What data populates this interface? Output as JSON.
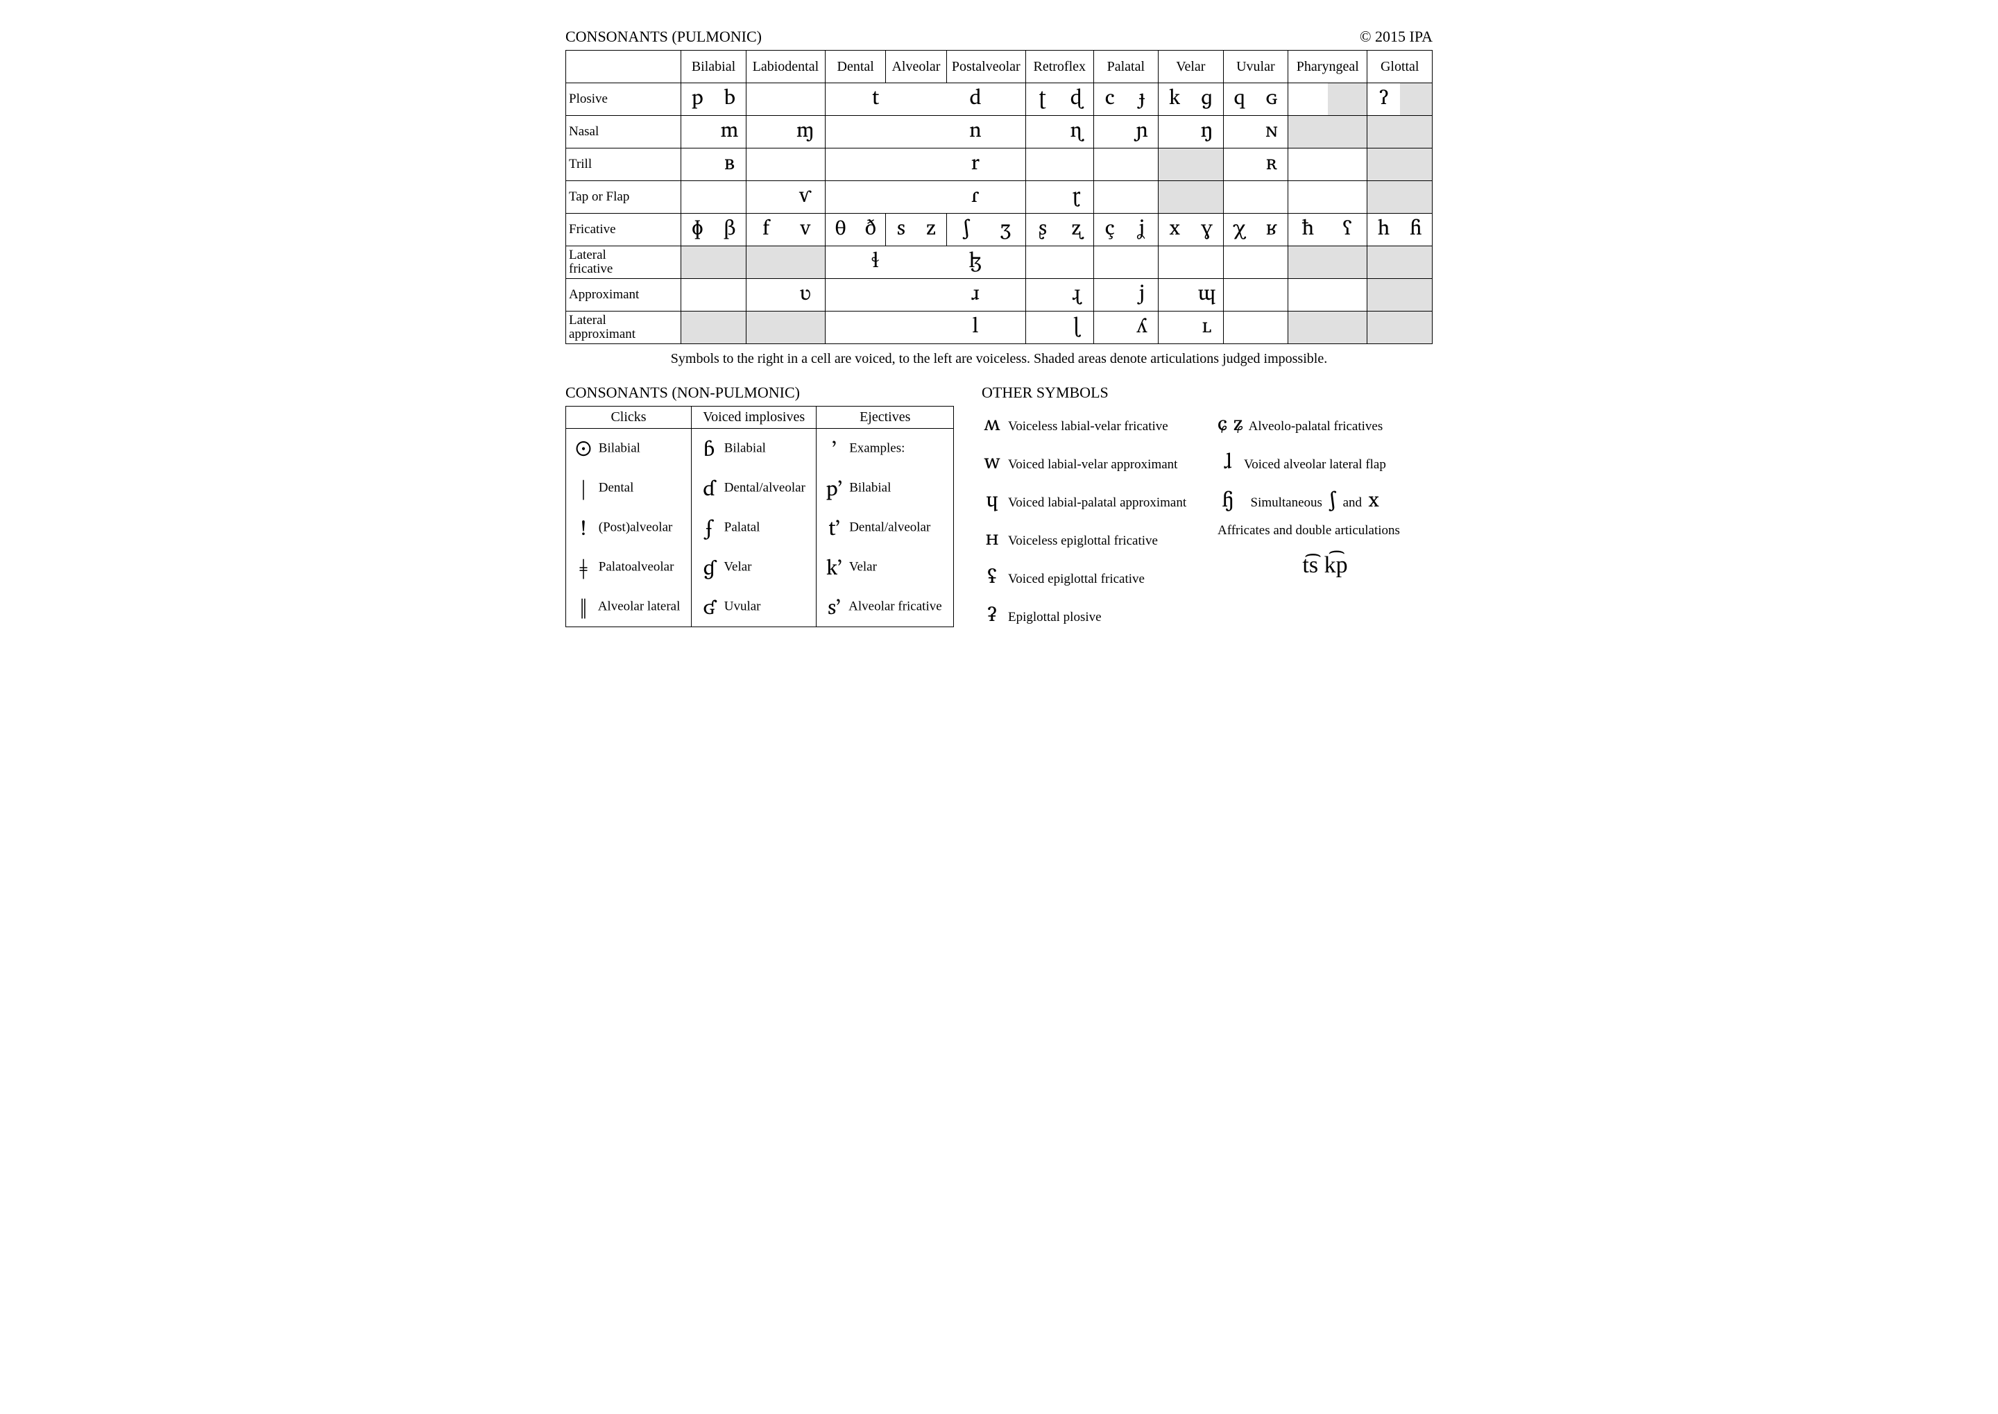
{
  "header": {
    "title": "CONSONANTS (PULMONIC)",
    "copyright": "© 2015 IPA"
  },
  "colWidths": [
    "160px",
    "90px",
    "110px",
    "84px",
    "84px",
    "110px",
    "94px",
    "90px",
    "90px",
    "90px",
    "110px",
    "90px"
  ],
  "columns": [
    "Bilabial",
    "Labiodental",
    "Dental",
    "Alveolar",
    "Postalveolar",
    "Retroflex",
    "Palatal",
    "Velar",
    "Uvular",
    "Pharyngeal",
    "Glottal"
  ],
  "rows": [
    {
      "label": "Plosive",
      "cells": [
        {
          "l": "p",
          "r": "b"
        },
        {
          "l": "",
          "r": ""
        },
        {
          "span": 3,
          "l": "t",
          "r": "d"
        },
        {
          "l": "ʈ",
          "r": "ɖ"
        },
        {
          "l": "c",
          "r": "ɟ"
        },
        {
          "l": "k",
          "r": "ɡ"
        },
        {
          "l": "q",
          "r": "ɢ"
        },
        {
          "l": "",
          "r": "",
          "rs": true
        },
        {
          "l": "ʔ",
          "r": "",
          "rs": true
        }
      ]
    },
    {
      "label": "Nasal",
      "cells": [
        {
          "l": "",
          "r": "m"
        },
        {
          "l": "",
          "r": "ɱ"
        },
        {
          "span": 3,
          "l": "",
          "r": "n"
        },
        {
          "l": "",
          "r": "ɳ"
        },
        {
          "l": "",
          "r": "ɲ"
        },
        {
          "l": "",
          "r": "ŋ"
        },
        {
          "l": "",
          "r": "ɴ"
        },
        {
          "ls": true,
          "rs": true
        },
        {
          "ls": true,
          "rs": true
        }
      ]
    },
    {
      "label": "Trill",
      "cells": [
        {
          "l": "",
          "r": "ʙ"
        },
        {
          "l": "",
          "r": ""
        },
        {
          "span": 3,
          "l": "",
          "r": "r"
        },
        {
          "l": "",
          "r": ""
        },
        {
          "l": "",
          "r": ""
        },
        {
          "ls": true,
          "rs": true
        },
        {
          "l": "",
          "r": "ʀ"
        },
        {
          "l": "",
          "r": ""
        },
        {
          "ls": true,
          "rs": true
        }
      ]
    },
    {
      "label": "Tap or Flap",
      "cells": [
        {
          "l": "",
          "r": ""
        },
        {
          "l": "",
          "r": "ⱱ"
        },
        {
          "span": 3,
          "l": "",
          "r": "ɾ"
        },
        {
          "l": "",
          "r": "ɽ"
        },
        {
          "l": "",
          "r": ""
        },
        {
          "ls": true,
          "rs": true
        },
        {
          "l": "",
          "r": ""
        },
        {
          "l": "",
          "r": ""
        },
        {
          "ls": true,
          "rs": true
        }
      ]
    },
    {
      "label": "Fricative",
      "cells": [
        {
          "l": "ɸ",
          "r": "β"
        },
        {
          "l": "f",
          "r": "v"
        },
        {
          "l": "θ",
          "r": "ð"
        },
        {
          "l": "s",
          "r": "z"
        },
        {
          "l": "ʃ",
          "r": "ʒ"
        },
        {
          "l": "ʂ",
          "r": "ʐ"
        },
        {
          "l": "ç",
          "r": "ʝ"
        },
        {
          "l": "x",
          "r": "ɣ"
        },
        {
          "l": "χ",
          "r": "ʁ"
        },
        {
          "l": "ħ",
          "r": "ʕ"
        },
        {
          "l": "h",
          "r": "ɦ"
        }
      ]
    },
    {
      "label": "Lateral\nfricative",
      "cells": [
        {
          "ls": true,
          "rs": true
        },
        {
          "ls": true,
          "rs": true
        },
        {
          "span": 3,
          "l": "ɬ",
          "r": "ɮ"
        },
        {
          "l": "",
          "r": ""
        },
        {
          "l": "",
          "r": ""
        },
        {
          "l": "",
          "r": ""
        },
        {
          "l": "",
          "r": ""
        },
        {
          "ls": true,
          "rs": true
        },
        {
          "ls": true,
          "rs": true
        }
      ]
    },
    {
      "label": "Approximant",
      "cells": [
        {
          "l": "",
          "r": ""
        },
        {
          "l": "",
          "r": "ʋ"
        },
        {
          "span": 3,
          "l": "",
          "r": "ɹ"
        },
        {
          "l": "",
          "r": "ɻ"
        },
        {
          "l": "",
          "r": "j"
        },
        {
          "l": "",
          "r": "ɰ"
        },
        {
          "l": "",
          "r": ""
        },
        {
          "l": "",
          "r": ""
        },
        {
          "ls": true,
          "rs": true
        }
      ]
    },
    {
      "label": "Lateral\napproximant",
      "cells": [
        {
          "ls": true,
          "rs": true
        },
        {
          "ls": true,
          "rs": true
        },
        {
          "span": 3,
          "l": "",
          "r": "l"
        },
        {
          "l": "",
          "r": "ɭ"
        },
        {
          "l": "",
          "r": "ʎ"
        },
        {
          "l": "",
          "r": "ʟ"
        },
        {
          "l": "",
          "r": ""
        },
        {
          "ls": true,
          "rs": true
        },
        {
          "ls": true,
          "rs": true
        }
      ]
    }
  ],
  "caption": "Symbols to the right in a cell are voiced, to the left are voiceless. Shaded areas denote articulations judged impossible.",
  "npTitle": "CONSONANTS (NON-PULMONIC)",
  "npHeaders": [
    "Clicks",
    "Voiced implosives",
    "Ejectives"
  ],
  "npRows": [
    [
      {
        "s": "ʘ",
        "d": "Bilabial"
      },
      {
        "s": "ɓ",
        "d": "Bilabial"
      },
      {
        "s": "ʼ",
        "d": "Examples:"
      }
    ],
    [
      {
        "s": "ǀ",
        "d": "Dental"
      },
      {
        "s": "ɗ",
        "d": "Dental/alveolar"
      },
      {
        "s": "pʼ",
        "d": "Bilabial"
      }
    ],
    [
      {
        "s": "ǃ",
        "d": "(Post)alveolar"
      },
      {
        "s": "ʄ",
        "d": "Palatal"
      },
      {
        "s": "tʼ",
        "d": "Dental/alveolar"
      }
    ],
    [
      {
        "s": "ǂ",
        "d": "Palatoalveolar"
      },
      {
        "s": "ɠ",
        "d": "Velar"
      },
      {
        "s": "kʼ",
        "d": "Velar"
      }
    ],
    [
      {
        "s": "ǁ",
        "d": "Alveolar lateral"
      },
      {
        "s": "ʛ",
        "d": "Uvular"
      },
      {
        "s": "sʼ",
        "d": "Alveolar fricative"
      }
    ]
  ],
  "osTitle": "OTHER SYMBOLS",
  "osLeft": [
    {
      "s": "ʍ",
      "d": "Voiceless labial-velar fricative"
    },
    {
      "s": "w",
      "d": "Voiced labial-velar approximant"
    },
    {
      "s": "ɥ",
      "d": "Voiced labial-palatal approximant"
    },
    {
      "s": "ʜ",
      "d": "Voiceless epiglottal fricative"
    },
    {
      "s": "ʢ",
      "d": "Voiced epiglottal fricative"
    },
    {
      "s": "ʡ",
      "d": "Epiglottal plosive"
    }
  ],
  "osRight": [
    {
      "s": "ɕ ʑ",
      "d": "Alveolo-palatal fricatives"
    },
    {
      "s": "ɺ",
      "d": "Voiced alveolar lateral flap"
    }
  ],
  "simul": {
    "s1": "ɧ",
    "mid": "Simultaneous",
    "s2": "ʃ",
    "and": "and",
    "s3": "x"
  },
  "affricNote": "Affricates and double articulations",
  "affric": "t͡s   k͡p"
}
